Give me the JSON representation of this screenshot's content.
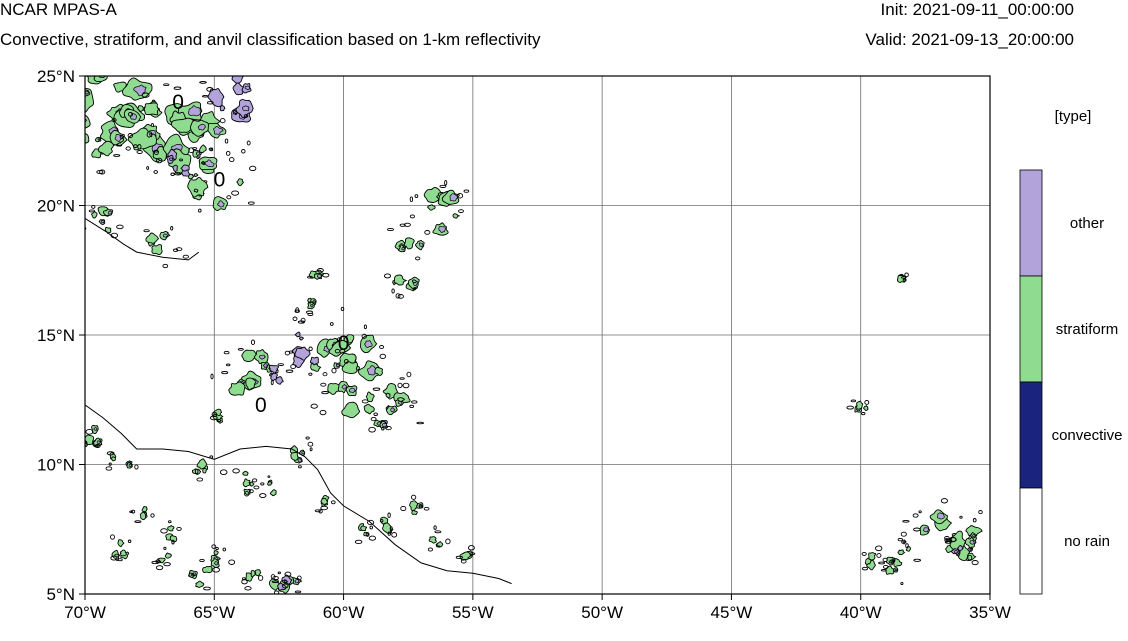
{
  "header": {
    "title": "NCAR MPAS-A",
    "subtitle": "Convective, stratiform, and anvil classification based on 1-km reflectivity",
    "init": "Init: 2021-09-11_00:00:00",
    "valid": "Valid: 2021-09-13_20:00:00"
  },
  "map": {
    "lon_range": [
      -70,
      -35
    ],
    "lat_range": [
      5,
      25
    ],
    "grid": true,
    "x_ticks": [
      {
        "lon": -70,
        "label": "70°W"
      },
      {
        "lon": -65,
        "label": "65°W"
      },
      {
        "lon": -60,
        "label": "60°W"
      },
      {
        "lon": -55,
        "label": "55°W"
      },
      {
        "lon": -50,
        "label": "50°W"
      },
      {
        "lon": -45,
        "label": "45°W"
      },
      {
        "lon": -40,
        "label": "40°W"
      },
      {
        "lon": -35,
        "label": "35°W"
      }
    ],
    "y_ticks": [
      {
        "lat": 25,
        "label": "25°N"
      },
      {
        "lat": 20,
        "label": "20°N"
      },
      {
        "lat": 15,
        "label": "15°N"
      },
      {
        "lat": 10,
        "label": "10°N"
      },
      {
        "lat": 5,
        "label": "5°N"
      }
    ],
    "contour_labels": [
      {
        "lon": -66.4,
        "lat": 24.0,
        "text": "0"
      },
      {
        "lon": -64.8,
        "lat": 21.0,
        "text": "0"
      },
      {
        "lon": -60.0,
        "lat": 14.7,
        "text": "0"
      },
      {
        "lon": -63.2,
        "lat": 12.3,
        "text": "0"
      }
    ],
    "coastline": [
      [
        [
          -70,
          19.5
        ],
        [
          -69.2,
          19.0
        ],
        [
          -68.5,
          18.5
        ],
        [
          -68.0,
          18.2
        ],
        [
          -67.0,
          18.0
        ],
        [
          -66.0,
          17.9
        ],
        [
          -65.6,
          18.2
        ]
      ],
      [
        [
          -70,
          12.3
        ],
        [
          -69.3,
          11.8
        ],
        [
          -68.6,
          11.2
        ],
        [
          -68.0,
          10.6
        ],
        [
          -67.0,
          10.6
        ],
        [
          -66.0,
          10.5
        ],
        [
          -65.0,
          10.2
        ],
        [
          -64.0,
          10.6
        ],
        [
          -63.0,
          10.7
        ],
        [
          -62.0,
          10.6
        ],
        [
          -61.5,
          10.3
        ],
        [
          -61.0,
          9.8
        ],
        [
          -60.5,
          8.9
        ],
        [
          -60.0,
          8.4
        ],
        [
          -59.0,
          7.8
        ],
        [
          -58.0,
          6.9
        ],
        [
          -57.0,
          6.2
        ],
        [
          -56.0,
          5.9
        ],
        [
          -55.0,
          5.8
        ],
        [
          -54.0,
          5.6
        ],
        [
          -53.5,
          5.4
        ]
      ]
    ],
    "colors": {
      "other": "#b3a3db",
      "stratiform": "#8fdc90",
      "convective": "#1a237e",
      "no_rain": "#ffffff",
      "contour": "#000000",
      "grid": "#6e6e6e"
    },
    "cells": [
      {
        "lon": -68.8,
        "lat": 23.6,
        "r": 1.6,
        "kind": "stratiform"
      },
      {
        "lon": -66.9,
        "lat": 23.0,
        "r": 1.4,
        "kind": "stratiform"
      },
      {
        "lon": -65.7,
        "lat": 22.1,
        "r": 1.3,
        "kind": "stratiform"
      },
      {
        "lon": -65.0,
        "lat": 20.9,
        "r": 1.0,
        "kind": "stratiform"
      },
      {
        "lon": -69.5,
        "lat": 22.4,
        "r": 0.8,
        "kind": "stratiform"
      },
      {
        "lon": -64.2,
        "lat": 24.2,
        "r": 0.9,
        "kind": "other"
      },
      {
        "lon": -66.3,
        "lat": 21.7,
        "r": 0.5,
        "kind": "other"
      },
      {
        "lon": -69.4,
        "lat": 19.4,
        "r": 0.5,
        "kind": "stratiform"
      },
      {
        "lon": -67.0,
        "lat": 18.5,
        "r": 0.6,
        "kind": "stratiform"
      },
      {
        "lon": -56.2,
        "lat": 19.8,
        "r": 0.8,
        "kind": "stratiform"
      },
      {
        "lon": -57.4,
        "lat": 18.7,
        "r": 0.6,
        "kind": "stratiform"
      },
      {
        "lon": -57.7,
        "lat": 17.0,
        "r": 0.5,
        "kind": "stratiform"
      },
      {
        "lon": -61.4,
        "lat": 16.2,
        "r": 0.3,
        "kind": "stratiform"
      },
      {
        "lon": -60.2,
        "lat": 14.2,
        "r": 1.2,
        "kind": "stratiform"
      },
      {
        "lon": -59.4,
        "lat": 12.9,
        "r": 1.3,
        "kind": "stratiform"
      },
      {
        "lon": -58.0,
        "lat": 12.3,
        "r": 0.8,
        "kind": "stratiform"
      },
      {
        "lon": -61.3,
        "lat": 14.4,
        "r": 0.8,
        "kind": "other"
      },
      {
        "lon": -63.6,
        "lat": 13.6,
        "r": 0.9,
        "kind": "stratiform"
      },
      {
        "lon": -62.5,
        "lat": 13.5,
        "r": 0.4,
        "kind": "other"
      },
      {
        "lon": -69.5,
        "lat": 11.1,
        "r": 0.4,
        "kind": "stratiform"
      },
      {
        "lon": -68.6,
        "lat": 10.1,
        "r": 0.4,
        "kind": "stratiform"
      },
      {
        "lon": -65.3,
        "lat": 9.7,
        "r": 0.4,
        "kind": "stratiform"
      },
      {
        "lon": -63.8,
        "lat": 9.3,
        "r": 0.4,
        "kind": "stratiform"
      },
      {
        "lon": -62.9,
        "lat": 9.1,
        "r": 0.3,
        "kind": "stratiform"
      },
      {
        "lon": -61.6,
        "lat": 10.4,
        "r": 0.4,
        "kind": "stratiform"
      },
      {
        "lon": -67.8,
        "lat": 8.1,
        "r": 0.3,
        "kind": "stratiform"
      },
      {
        "lon": -66.6,
        "lat": 7.3,
        "r": 0.3,
        "kind": "stratiform"
      },
      {
        "lon": -68.5,
        "lat": 6.7,
        "r": 0.4,
        "kind": "stratiform"
      },
      {
        "lon": -67.0,
        "lat": 6.4,
        "r": 0.3,
        "kind": "stratiform"
      },
      {
        "lon": -65.5,
        "lat": 5.7,
        "r": 0.4,
        "kind": "stratiform"
      },
      {
        "lon": -64.8,
        "lat": 6.4,
        "r": 0.3,
        "kind": "stratiform"
      },
      {
        "lon": -63.5,
        "lat": 5.6,
        "r": 0.3,
        "kind": "stratiform"
      },
      {
        "lon": -62.2,
        "lat": 5.3,
        "r": 0.5,
        "kind": "stratiform"
      },
      {
        "lon": -62.4,
        "lat": 5.5,
        "r": 0.25,
        "kind": "other"
      },
      {
        "lon": -59.2,
        "lat": 7.4,
        "r": 0.3,
        "kind": "stratiform"
      },
      {
        "lon": -58.3,
        "lat": 7.6,
        "r": 0.3,
        "kind": "stratiform"
      },
      {
        "lon": -58.5,
        "lat": 11.7,
        "r": 0.3,
        "kind": "stratiform"
      },
      {
        "lon": -57.3,
        "lat": 8.3,
        "r": 0.3,
        "kind": "stratiform"
      },
      {
        "lon": -56.4,
        "lat": 7.1,
        "r": 0.3,
        "kind": "stratiform"
      },
      {
        "lon": -55.3,
        "lat": 6.5,
        "r": 0.25,
        "kind": "stratiform"
      },
      {
        "lon": -60.9,
        "lat": 8.6,
        "r": 0.3,
        "kind": "stratiform"
      },
      {
        "lon": -37.0,
        "lat": 7.4,
        "r": 0.8,
        "kind": "stratiform"
      },
      {
        "lon": -35.6,
        "lat": 7.0,
        "r": 0.8,
        "kind": "stratiform"
      },
      {
        "lon": -38.6,
        "lat": 6.6,
        "r": 0.5,
        "kind": "stratiform"
      },
      {
        "lon": -36.0,
        "lat": 6.7,
        "r": 0.4,
        "kind": "other"
      },
      {
        "lon": -38.7,
        "lat": 5.9,
        "r": 0.35,
        "kind": "stratiform"
      },
      {
        "lon": -39.6,
        "lat": 6.3,
        "r": 0.3,
        "kind": "stratiform"
      },
      {
        "lon": -38.5,
        "lat": 17.3,
        "r": 0.2,
        "kind": "stratiform"
      },
      {
        "lon": -40.0,
        "lat": 12.3,
        "r": 0.25,
        "kind": "stratiform"
      },
      {
        "lon": -61.0,
        "lat": 17.3,
        "r": 0.2,
        "kind": "stratiform"
      },
      {
        "lon": -64.8,
        "lat": 11.9,
        "r": 0.2,
        "kind": "stratiform"
      }
    ]
  },
  "colorbar": {
    "title": "[type]",
    "entries": [
      {
        "label": "other",
        "color": "#b3a3db"
      },
      {
        "label": "stratiform",
        "color": "#8fdc90"
      },
      {
        "label": "convective",
        "color": "#1a237e"
      },
      {
        "label": "no rain",
        "color": "#ffffff"
      }
    ]
  }
}
